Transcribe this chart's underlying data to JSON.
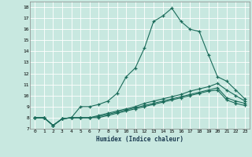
{
  "xlabel": "Humidex (Indice chaleur)",
  "background_color": "#c8e8e0",
  "line_color": "#1a6b5a",
  "grid_color": "#a8d8d0",
  "xlim": [
    -0.5,
    23.5
  ],
  "ylim": [
    7,
    18.5
  ],
  "xticks": [
    0,
    1,
    2,
    3,
    4,
    5,
    6,
    7,
    8,
    9,
    10,
    11,
    12,
    13,
    14,
    15,
    16,
    17,
    18,
    19,
    20,
    21,
    22,
    23
  ],
  "yticks": [
    7,
    8,
    9,
    10,
    11,
    12,
    13,
    14,
    15,
    16,
    17,
    18
  ],
  "line1_x": [
    0,
    1,
    2,
    3,
    4,
    5,
    6,
    7,
    8,
    9,
    10,
    11,
    12,
    13,
    14,
    15,
    16,
    17,
    18,
    19,
    20,
    21,
    22,
    23
  ],
  "line1_y": [
    8.0,
    8.0,
    7.3,
    7.9,
    8.0,
    9.0,
    9.0,
    9.2,
    9.5,
    10.2,
    11.7,
    12.5,
    14.3,
    16.7,
    17.2,
    17.9,
    16.7,
    16.0,
    15.8,
    13.7,
    11.7,
    11.3,
    10.5,
    9.7
  ],
  "line2_x": [
    0,
    1,
    2,
    3,
    4,
    5,
    6,
    7,
    8,
    9,
    10,
    11,
    12,
    13,
    14,
    15,
    16,
    17,
    18,
    19,
    20,
    21,
    22,
    23
  ],
  "line2_y": [
    8.0,
    8.0,
    7.3,
    7.9,
    8.0,
    8.0,
    8.0,
    8.2,
    8.4,
    8.6,
    8.8,
    9.0,
    9.3,
    9.5,
    9.7,
    9.9,
    10.1,
    10.4,
    10.6,
    10.8,
    11.1,
    10.5,
    10.0,
    9.5
  ],
  "line3_x": [
    0,
    1,
    2,
    3,
    4,
    5,
    6,
    7,
    8,
    9,
    10,
    11,
    12,
    13,
    14,
    15,
    16,
    17,
    18,
    19,
    20,
    21,
    22,
    23
  ],
  "line3_y": [
    8.0,
    8.0,
    7.3,
    7.9,
    8.0,
    8.0,
    8.0,
    8.1,
    8.3,
    8.5,
    8.7,
    8.9,
    9.1,
    9.3,
    9.5,
    9.7,
    9.9,
    10.1,
    10.3,
    10.5,
    10.7,
    9.8,
    9.5,
    9.3
  ],
  "line4_x": [
    0,
    1,
    2,
    3,
    4,
    5,
    6,
    7,
    8,
    9,
    10,
    11,
    12,
    13,
    14,
    15,
    16,
    17,
    18,
    19,
    20,
    21,
    22,
    23
  ],
  "line4_y": [
    8.0,
    8.0,
    7.3,
    7.9,
    8.0,
    8.0,
    8.0,
    8.0,
    8.2,
    8.4,
    8.6,
    8.8,
    9.0,
    9.2,
    9.4,
    9.6,
    9.8,
    10.0,
    10.2,
    10.4,
    10.5,
    9.6,
    9.3,
    9.1
  ]
}
